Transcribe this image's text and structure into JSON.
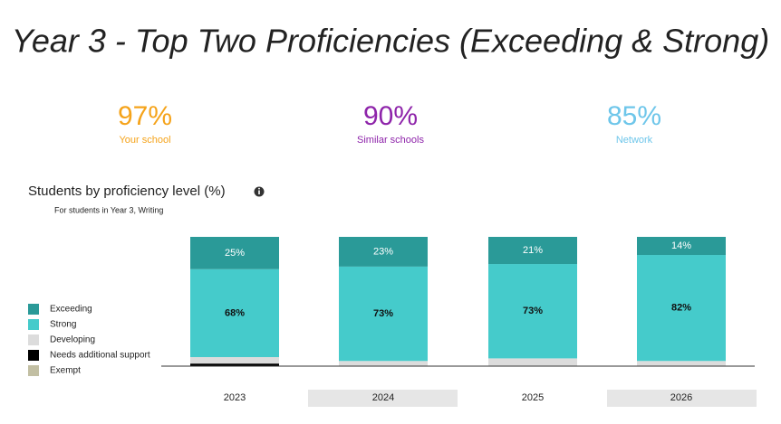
{
  "title": "Year 3 - Top Two Proficiencies (Exceeding & Strong)",
  "stats": [
    {
      "value": "97%",
      "label": "Your school",
      "color": "#f5a31a"
    },
    {
      "value": "90%",
      "label": "Similar schools",
      "color": "#8e24aa"
    },
    {
      "value": "85%",
      "label": "Network",
      "color": "#6ec6ea"
    }
  ],
  "chart_data": {
    "type": "stacked_bar",
    "title": "Students by proficiency level (%)",
    "subtitle": "For students in Year 3, Writing",
    "categories": [
      "2023",
      "2024",
      "2025",
      "2026"
    ],
    "ylim": [
      0,
      100
    ],
    "legend": "left",
    "series": [
      {
        "name": "Exceeding",
        "color": "#2a9a98",
        "values": [
          25,
          23,
          21,
          14
        ],
        "value_labels": [
          "25%",
          "23%",
          "21%",
          "14%"
        ]
      },
      {
        "name": "Strong",
        "color": "#45cbcb",
        "values": [
          68,
          73,
          73,
          82
        ],
        "value_labels": [
          "68%",
          "73%",
          "73%",
          "82%"
        ]
      },
      {
        "name": "Developing",
        "color": "#dcdcdc",
        "values": [
          5,
          4,
          6,
          4
        ]
      },
      {
        "name": "Needs additional support",
        "color": "#000000",
        "values": [
          2,
          0,
          0,
          0
        ]
      },
      {
        "name": "Exempt",
        "color": "#c2bfa3",
        "values": [
          0,
          0,
          0,
          0
        ]
      }
    ]
  }
}
